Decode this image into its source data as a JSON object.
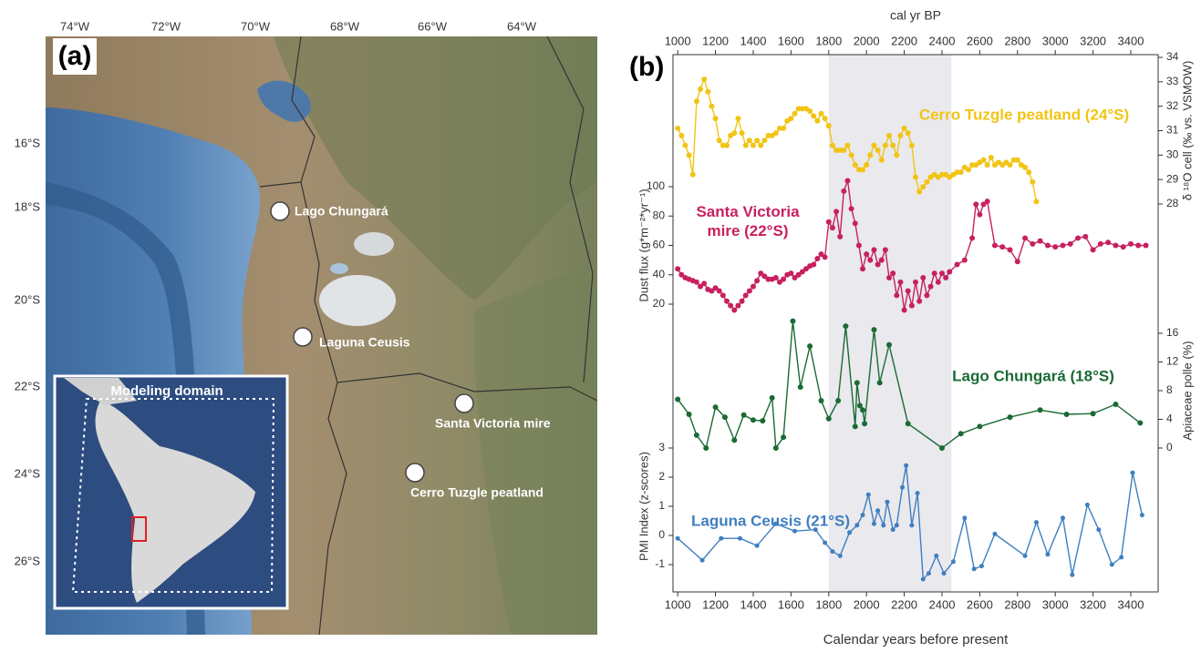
{
  "map": {
    "panel_label": "(a)",
    "lon_labels": [
      "74°W",
      "72°W",
      "70°W",
      "68°W",
      "66°W",
      "64°W"
    ],
    "lat_labels": [
      "16°S",
      "18°S",
      "20°S",
      "22°S",
      "24°S",
      "26°S"
    ],
    "sites": [
      "Lago Chungará",
      "Laguna Ceusis",
      "Santa Victoria mire",
      "Cerro Tuzgle peatland"
    ],
    "inset_label": "Modeling domain"
  },
  "chart_data": {
    "type": "line",
    "title": "(b)",
    "xlabel": "Calendar years before present",
    "x2label": "cal yr BP",
    "xlim": [
      975,
      3545
    ],
    "xticks": [
      1000,
      1200,
      1400,
      1600,
      1800,
      2000,
      2200,
      2400,
      2600,
      2800,
      3000,
      3200,
      3400
    ],
    "highlight_x": [
      1800,
      2450
    ],
    "highlight_color": "#e9e9ee",
    "series": [
      {
        "name": "Cerro Tuzgle peatland (24°S)",
        "color": "#f2c414",
        "axis": "right",
        "ylabel": "δ ¹⁸O cell (‰ vs. VSMOW)",
        "ylim": [
          28,
          34
        ],
        "yticks": [
          28,
          29,
          30,
          31,
          32,
          33,
          34
        ],
        "x": [
          1000,
          1020,
          1040,
          1060,
          1080,
          1100,
          1120,
          1140,
          1160,
          1180,
          1200,
          1220,
          1240,
          1260,
          1280,
          1300,
          1320,
          1340,
          1360,
          1380,
          1400,
          1420,
          1440,
          1460,
          1480,
          1500,
          1520,
          1540,
          1560,
          1580,
          1600,
          1620,
          1640,
          1660,
          1680,
          1700,
          1720,
          1740,
          1760,
          1780,
          1800,
          1820,
          1840,
          1860,
          1880,
          1900,
          1920,
          1940,
          1960,
          1980,
          2000,
          2020,
          2040,
          2060,
          2080,
          2100,
          2120,
          2140,
          2160,
          2180,
          2200,
          2220,
          2240,
          2260,
          2280,
          2300,
          2320,
          2340,
          2360,
          2380,
          2400,
          2420,
          2440,
          2460,
          2480,
          2500,
          2520,
          2540,
          2560,
          2580,
          2600,
          2620,
          2640,
          2660,
          2680,
          2700,
          2720,
          2740,
          2760,
          2780,
          2800,
          2820,
          2840,
          2860,
          2880,
          2900
        ],
        "values": [
          31.1,
          30.8,
          30.4,
          30.0,
          29.2,
          32.2,
          32.7,
          33.1,
          32.6,
          32.0,
          31.5,
          30.6,
          30.4,
          30.4,
          30.8,
          30.9,
          31.5,
          30.9,
          30.4,
          30.6,
          30.4,
          30.6,
          30.4,
          30.6,
          30.8,
          30.8,
          30.9,
          31.1,
          31.1,
          31.4,
          31.5,
          31.7,
          31.9,
          31.9,
          31.9,
          31.8,
          31.6,
          31.4,
          31.7,
          31.5,
          31.2,
          30.4,
          30.2,
          30.2,
          30.2,
          30.4,
          30.0,
          29.6,
          29.4,
          29.4,
          29.6,
          30.0,
          30.4,
          30.2,
          29.8,
          30.4,
          30.8,
          30.4,
          30.0,
          30.8,
          31.1,
          30.9,
          30.4,
          29.1,
          28.5,
          28.7,
          28.9,
          29.1,
          29.2,
          29.1,
          29.2,
          29.2,
          29.1,
          29.2,
          29.3,
          29.3,
          29.5,
          29.4,
          29.6,
          29.6,
          29.7,
          29.8,
          29.6,
          29.9,
          29.6,
          29.7,
          29.6,
          29.7,
          29.6,
          29.8,
          29.8,
          29.6,
          29.5,
          29.3,
          28.9,
          28.1
        ]
      },
      {
        "name": "Santa Victoria mire (22°S)",
        "color": "#c8205f",
        "axis": "left",
        "ylabel": "Dust flux (g*m⁻²*yr⁻¹)",
        "ylim": [
          20,
          100
        ],
        "yticks": [
          20,
          40,
          60,
          80,
          100
        ],
        "x": [
          1000,
          1020,
          1040,
          1060,
          1080,
          1100,
          1120,
          1140,
          1160,
          1180,
          1200,
          1220,
          1240,
          1260,
          1280,
          1300,
          1320,
          1340,
          1360,
          1380,
          1400,
          1420,
          1440,
          1460,
          1480,
          1500,
          1520,
          1540,
          1560,
          1580,
          1600,
          1620,
          1640,
          1660,
          1680,
          1700,
          1720,
          1740,
          1760,
          1780,
          1800,
          1820,
          1840,
          1860,
          1880,
          1900,
          1920,
          1940,
          1960,
          1980,
          2000,
          2020,
          2040,
          2060,
          2080,
          2100,
          2120,
          2140,
          2160,
          2180,
          2200,
          2220,
          2240,
          2260,
          2280,
          2300,
          2320,
          2340,
          2360,
          2380,
          2400,
          2420,
          2440,
          2480,
          2520,
          2560,
          2580,
          2600,
          2620,
          2640,
          2680,
          2720,
          2760,
          2800,
          2840,
          2880,
          2920,
          2960,
          3000,
          3040,
          3080,
          3120,
          3160,
          3200,
          3240,
          3280,
          3320,
          3360,
          3400,
          3440,
          3480
        ],
        "values": [
          44,
          40,
          38,
          37,
          36,
          35,
          32,
          34,
          30,
          29,
          31,
          29,
          26,
          22,
          19,
          16,
          19,
          22,
          26,
          29,
          32,
          36,
          41,
          39,
          37,
          37,
          38,
          35,
          37,
          40,
          41,
          38,
          40,
          42,
          44,
          46,
          47,
          51,
          54,
          52,
          76,
          72,
          83,
          66,
          97,
          104,
          85,
          75,
          60,
          44,
          54,
          50,
          57,
          47,
          50,
          57,
          38,
          41,
          26,
          35,
          16,
          29,
          19,
          35,
          22,
          38,
          26,
          32,
          41,
          35,
          41,
          38,
          42,
          47,
          50,
          65,
          88,
          81,
          88,
          90,
          60,
          59,
          57,
          49,
          65,
          61,
          63,
          60,
          59,
          60,
          61,
          65,
          66,
          57,
          61,
          62,
          60,
          59,
          61,
          60,
          60
        ]
      },
      {
        "name": "Lago Chungará (18°S)",
        "color": "#1b6a34",
        "axis": "right",
        "ylabel": "Apiaceae polle (%)",
        "ylim": [
          0,
          16
        ],
        "yticks": [
          0,
          4,
          8,
          12,
          16
        ],
        "x": [
          1000,
          1060,
          1100,
          1150,
          1200,
          1250,
          1300,
          1350,
          1400,
          1450,
          1500,
          1520,
          1560,
          1610,
          1650,
          1700,
          1760,
          1800,
          1850,
          1890,
          1940,
          1950,
          1965,
          1980,
          1990,
          2040,
          2070,
          2120,
          2220,
          2400,
          2500,
          2600,
          2760,
          2920,
          3060,
          3200,
          3320,
          3450
        ],
        "values": [
          6.8,
          4.7,
          1.8,
          0,
          5.7,
          4.3,
          1.1,
          4.6,
          3.9,
          3.8,
          7.0,
          0,
          1.5,
          17.7,
          8.5,
          14.2,
          6.6,
          4.1,
          6.6,
          17.0,
          3.0,
          9.1,
          5.9,
          5.3,
          3.4,
          16.5,
          9.1,
          14.4,
          3.4,
          0,
          2.0,
          3.0,
          4.3,
          5.3,
          4.7,
          4.8,
          6.1,
          3.5
        ]
      },
      {
        "name": "Laguna Ceusis (21°S)",
        "color": "#3f7fc0",
        "axis": "left",
        "ylabel": "PMI Index (z-scores)",
        "ylim": [
          -1,
          3
        ],
        "yticks": [
          -1,
          0,
          1,
          2,
          3
        ],
        "x": [
          1000,
          1130,
          1230,
          1330,
          1420,
          1520,
          1620,
          1730,
          1780,
          1820,
          1860,
          1910,
          1950,
          1980,
          2010,
          2040,
          2060,
          2090,
          2110,
          2140,
          2160,
          2190,
          2210,
          2240,
          2270,
          2300,
          2330,
          2370,
          2410,
          2460,
          2520,
          2570,
          2610,
          2680,
          2840,
          2900,
          2960,
          3040,
          3090,
          3170,
          3230,
          3300,
          3350,
          3410,
          3460
        ],
        "values": [
          -0.1,
          -0.85,
          -0.1,
          -0.1,
          -0.35,
          0.4,
          0.15,
          0.2,
          -0.25,
          -0.55,
          -0.7,
          0.1,
          0.35,
          0.7,
          1.4,
          0.4,
          0.85,
          0.35,
          1.15,
          0.2,
          0.35,
          1.65,
          2.4,
          0.35,
          1.45,
          -1.5,
          -1.3,
          -0.7,
          -1.3,
          -0.9,
          0.6,
          -1.15,
          -1.05,
          0.05,
          -0.7,
          0.45,
          -0.65,
          0.6,
          -1.35,
          1.05,
          0.2,
          -1.0,
          -0.75,
          2.15,
          0.7
        ]
      }
    ]
  }
}
